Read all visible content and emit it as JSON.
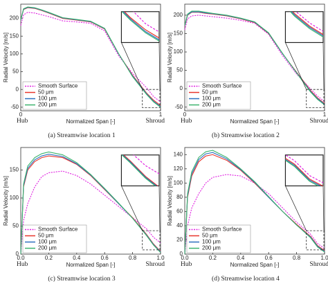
{
  "chart_data": [
    {
      "type": "line",
      "title": "(a) Streamwise location 1",
      "x_label": "Normalized Span [-]",
      "y_label": "Radial Velocity [m/s]",
      "hub_label": "Hub",
      "shroud_label": "Shroud",
      "x": [
        0,
        0.02,
        0.05,
        0.1,
        0.15,
        0.2,
        0.3,
        0.4,
        0.5,
        0.6,
        0.7,
        0.8,
        0.9,
        0.95,
        1.0
      ],
      "xlim": [
        0,
        1
      ],
      "xticks": [
        0,
        1
      ],
      "ylim": [
        -60,
        240
      ],
      "yticks": [
        -50,
        0,
        50,
        100,
        150,
        200
      ],
      "legend": "lower left",
      "series": [
        {
          "name": "Smooth Surface",
          "color": "#e020e0",
          "dashed": true,
          "values": [
            180,
            210,
            217,
            215,
            210,
            205,
            193,
            190,
            186,
            165,
            95,
            45,
            5,
            -20,
            -35
          ]
        },
        {
          "name": "50 μm",
          "color": "#e8352b",
          "values": [
            195,
            225,
            230,
            228,
            222,
            215,
            200,
            195,
            190,
            170,
            100,
            40,
            -10,
            -30,
            -45
          ]
        },
        {
          "name": "100 μm",
          "color": "#2a6fbf",
          "values": [
            195,
            226,
            231,
            229,
            223,
            216,
            201,
            196,
            191,
            171,
            100,
            38,
            -12,
            -33,
            -48
          ]
        },
        {
          "name": "200 μm",
          "color": "#3cb46e",
          "values": [
            196,
            227,
            232,
            230,
            224,
            217,
            202,
            197,
            192,
            172,
            101,
            36,
            -14,
            -35,
            -50
          ]
        }
      ]
    },
    {
      "type": "line",
      "title": "(b) Streamwise location 2",
      "x_label": "Normalized Span [-]",
      "y_label": "Radial Velocity [m/s]",
      "hub_label": "Hub",
      "shroud_label": "Shroud",
      "x": [
        0,
        0.02,
        0.05,
        0.1,
        0.15,
        0.2,
        0.3,
        0.4,
        0.5,
        0.6,
        0.7,
        0.8,
        0.9,
        0.95,
        1.0
      ],
      "xlim": [
        0,
        1
      ],
      "xticks": [
        0,
        1
      ],
      "ylim": [
        -60,
        230
      ],
      "yticks": [
        -50,
        0,
        50,
        100,
        150,
        200
      ],
      "legend": "lower left",
      "series": [
        {
          "name": "Smooth Surface",
          "color": "#e020e0",
          "dashed": true,
          "values": [
            160,
            190,
            198,
            200,
            198,
            196,
            192,
            186,
            178,
            148,
            90,
            40,
            0,
            -20,
            -35
          ]
        },
        {
          "name": "50 μm",
          "color": "#e8352b",
          "values": [
            170,
            200,
            208,
            208,
            205,
            203,
            198,
            190,
            180,
            150,
            95,
            45,
            -5,
            -25,
            -40
          ]
        },
        {
          "name": "100 μm",
          "color": "#2a6fbf",
          "values": [
            171,
            201,
            209,
            209,
            206,
            204,
            199,
            191,
            181,
            151,
            95,
            44,
            -7,
            -27,
            -42
          ]
        },
        {
          "name": "200 μm",
          "color": "#3cb46e",
          "values": [
            172,
            203,
            211,
            211,
            208,
            205,
            200,
            192,
            182,
            152,
            96,
            43,
            -9,
            -29,
            -44
          ]
        }
      ]
    },
    {
      "type": "line",
      "title": "(c) Streamwise location 3",
      "x_label": "Normalized Span [-]",
      "y_label": "Radial Velocity [m/s]",
      "hub_label": "Hub",
      "shroud_label": "Shroud",
      "x": [
        0,
        0.02,
        0.05,
        0.1,
        0.15,
        0.2,
        0.3,
        0.4,
        0.5,
        0.6,
        0.7,
        0.8,
        0.9,
        0.95,
        1.0
      ],
      "xlim": [
        0,
        1
      ],
      "xticks": [
        {
          "value": 0,
          "label": "0.0"
        },
        0.2,
        0.4,
        0.6,
        0.8,
        {
          "value": 1,
          "label": "1.0"
        }
      ],
      "ylim": [
        0,
        190
      ],
      "yticks": [
        0,
        50,
        100,
        150
      ],
      "legend": "lower left",
      "series": [
        {
          "name": "Smooth Surface",
          "color": "#e020e0",
          "dashed": true,
          "values": [
            0,
            60,
            90,
            120,
            138,
            145,
            148,
            140,
            125,
            105,
            85,
            65,
            45,
            30,
            20
          ]
        },
        {
          "name": "50 μm",
          "color": "#e8352b",
          "values": [
            0,
            120,
            150,
            165,
            172,
            175,
            172,
            160,
            140,
            115,
            90,
            65,
            35,
            18,
            5
          ]
        },
        {
          "name": "100 μm",
          "color": "#2a6fbf",
          "values": [
            0,
            122,
            153,
            168,
            175,
            178,
            174,
            161,
            141,
            116,
            90,
            64,
            34,
            17,
            4
          ]
        },
        {
          "name": "200 μm",
          "color": "#3cb46e",
          "values": [
            0,
            125,
            157,
            172,
            179,
            182,
            177,
            163,
            142,
            117,
            91,
            64,
            33,
            16,
            3
          ]
        }
      ]
    },
    {
      "type": "line",
      "title": "(d) Streamwise location 4",
      "x_label": "Normalized Span [-]",
      "y_label": "Radial Velocity [m/s]",
      "hub_label": "Hub",
      "shroud_label": "Shroud",
      "x": [
        0,
        0.02,
        0.05,
        0.1,
        0.15,
        0.2,
        0.3,
        0.4,
        0.5,
        0.6,
        0.7,
        0.8,
        0.9,
        0.95,
        1.0
      ],
      "xlim": [
        0,
        1
      ],
      "xticks": [
        {
          "value": 0,
          "label": "0.0"
        },
        0.2,
        0.4,
        0.6,
        0.8,
        {
          "value": 1,
          "label": "1.0"
        }
      ],
      "ylim": [
        0,
        150
      ],
      "yticks": [
        0,
        20,
        40,
        60,
        80,
        100,
        120,
        140
      ],
      "legend": "lower left",
      "series": [
        {
          "name": "Smooth Surface",
          "color": "#e020e0",
          "dashed": true,
          "values": [
            0,
            40,
            65,
            85,
            100,
            108,
            112,
            110,
            100,
            85,
            65,
            45,
            28,
            15,
            8
          ]
        },
        {
          "name": "50 μm",
          "color": "#e8352b",
          "values": [
            0,
            80,
            110,
            130,
            138,
            140,
            132,
            118,
            100,
            80,
            60,
            42,
            25,
            12,
            5
          ]
        },
        {
          "name": "100 μm",
          "color": "#2a6fbf",
          "values": [
            0,
            82,
            113,
            133,
            141,
            143,
            134,
            119,
            101,
            80,
            60,
            41,
            24,
            11,
            4
          ]
        },
        {
          "name": "200 μm",
          "color": "#3cb46e",
          "values": [
            0,
            85,
            116,
            136,
            144,
            146,
            136,
            120,
            102,
            81,
            60,
            41,
            23,
            10,
            3
          ]
        }
      ]
    }
  ]
}
